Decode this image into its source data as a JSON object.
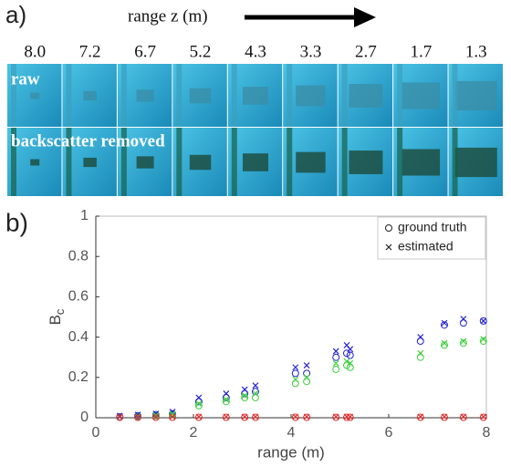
{
  "panel_a": {
    "label": "a)",
    "axis_label": "range z (m)",
    "ranges": [
      "8.0",
      "7.2",
      "6.7",
      "5.2",
      "4.3",
      "3.3",
      "2.7",
      "1.7",
      "1.3"
    ],
    "row_labels": [
      "raw",
      "backscatter removed"
    ]
  },
  "chart_data": {
    "type": "scatter",
    "panel_label": "b)",
    "xlabel": "range (m)",
    "ylabel": "B",
    "ylabel_sub": "c",
    "xlim": [
      0,
      8
    ],
    "xticks": [
      0,
      2,
      4,
      6,
      8
    ],
    "ylim": [
      0,
      1
    ],
    "yticks": [
      0,
      0.2,
      0.4,
      0.6,
      0.8,
      1
    ],
    "x": [
      0.49,
      0.86,
      1.23,
      1.57,
      2.11,
      2.67,
      3.05,
      3.27,
      4.09,
      4.32,
      4.92,
      5.14,
      5.21,
      6.65,
      7.14,
      7.53,
      7.94
    ],
    "legend_position": "upper right",
    "series": [
      {
        "name": "ground truth",
        "marker": "circle",
        "color": "#222222",
        "channels": [
          {
            "color": "#2424d4",
            "values": [
              0.005,
              0.01,
              0.015,
              0.02,
              0.08,
              0.1,
              0.12,
              0.13,
              0.22,
              0.22,
              0.3,
              0.32,
              0.31,
              0.38,
              0.46,
              0.47,
              0.48
            ]
          },
          {
            "color": "#3ccf3c",
            "values": [
              0.003,
              0.005,
              0.01,
              0.015,
              0.06,
              0.08,
              0.1,
              0.1,
              0.17,
              0.18,
              0.24,
              0.26,
              0.25,
              0.3,
              0.36,
              0.37,
              0.38
            ]
          },
          {
            "color": "#e03030",
            "values": [
              0.002,
              0.002,
              0.002,
              0.002,
              0.002,
              0.002,
              0.002,
              0.002,
              0.002,
              0.002,
              0.002,
              0.002,
              0.002,
              0.002,
              0.002,
              0.002,
              0.002
            ]
          }
        ]
      },
      {
        "name": "estimated",
        "marker": "x",
        "color": "#222222",
        "channels": [
          {
            "color": "#2424d4",
            "values": [
              0.01,
              0.015,
              0.02,
              0.03,
              0.1,
              0.12,
              0.14,
              0.16,
              0.25,
              0.26,
              0.33,
              0.36,
              0.34,
              0.4,
              0.47,
              0.49,
              0.48
            ]
          },
          {
            "color": "#3ccf3c",
            "values": [
              0.005,
              0.008,
              0.012,
              0.018,
              0.07,
              0.09,
              0.11,
              0.12,
              0.19,
              0.2,
              0.27,
              0.28,
              0.27,
              0.32,
              0.37,
              0.38,
              0.39
            ]
          },
          {
            "color": "#e03030",
            "values": [
              0.005,
              0.005,
              0.005,
              0.005,
              0.005,
              0.005,
              0.005,
              0.005,
              0.005,
              0.005,
              0.005,
              0.005,
              0.005,
              0.005,
              0.005,
              0.005,
              0.005
            ]
          }
        ]
      }
    ]
  }
}
